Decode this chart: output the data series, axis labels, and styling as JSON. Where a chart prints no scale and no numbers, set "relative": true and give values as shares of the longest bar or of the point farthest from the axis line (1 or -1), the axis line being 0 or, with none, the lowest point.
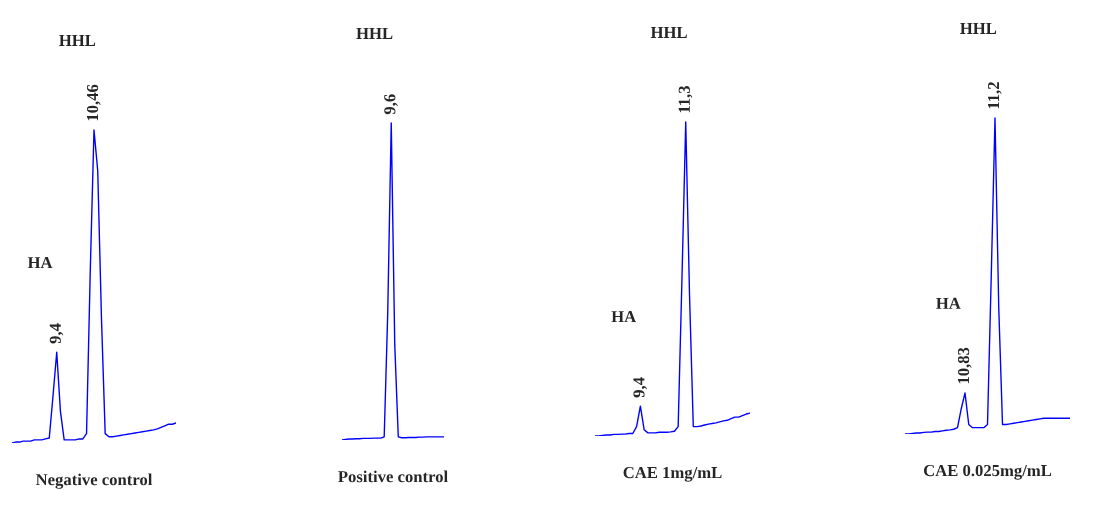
{
  "chart_data": [
    {
      "type": "line",
      "relative": true,
      "xlabel": "Negative control",
      "annotations": [
        "HA",
        "9,4",
        "HHL",
        "10,46"
      ],
      "categories": [
        null,
        null,
        null,
        null,
        null,
        null,
        null,
        null,
        null,
        null,
        null,
        null,
        null,
        null,
        null,
        null,
        null,
        null,
        null,
        null,
        null,
        null,
        null,
        null,
        null,
        null,
        null,
        null,
        null,
        null,
        null,
        null,
        null,
        null,
        null,
        null,
        null,
        null,
        null,
        null,
        null,
        null,
        null,
        null,
        null
      ],
      "series": [
        {
          "color": "#0000ff",
          "values": [
            0,
            0.003,
            0.003,
            0.006,
            0.006,
            0.006,
            0.01,
            0.01,
            0.01,
            0.013,
            0.016,
            0.15,
            0.29,
            0.1,
            0.01,
            0.01,
            0.01,
            0.01,
            0.013,
            0.013,
            0.03,
            0.55,
            1.0,
            0.87,
            0.4,
            0.03,
            0.02,
            0.02,
            0.022,
            0.024,
            0.026,
            0.028,
            0.03,
            0.032,
            0.034,
            0.036,
            0.038,
            0.04,
            0.042,
            0.045,
            0.05,
            0.055,
            0.06,
            0.06,
            0.064
          ]
        }
      ]
    },
    {
      "type": "line",
      "relative": true,
      "xlabel": "Positive control",
      "annotations": [
        "HHL",
        "9,6"
      ],
      "categories": [
        null,
        null,
        null,
        null,
        null,
        null,
        null,
        null,
        null,
        null,
        null,
        null,
        null,
        null,
        null,
        null,
        null,
        null,
        null,
        null,
        null,
        null,
        null,
        null,
        null,
        null,
        null,
        null,
        null,
        null
      ],
      "series": [
        {
          "color": "#0000ff",
          "values": [
            0,
            0.002,
            0.003,
            0.003,
            0.004,
            0.004,
            0.005,
            0.005,
            0.005,
            0.006,
            0.006,
            0.006,
            0.01,
            0.4,
            1.0,
            0.3,
            0.01,
            0.007,
            0.007,
            0.008,
            0.008,
            0.008,
            0.009,
            0.009,
            0.01,
            0.01,
            0.01,
            0.01,
            0.01,
            0.01
          ]
        }
      ]
    },
    {
      "type": "line",
      "relative": true,
      "xlabel": "CAE 1mg/mL",
      "annotations": [
        "HA",
        "9,4",
        "HHL",
        "11,3"
      ],
      "categories": [
        null,
        null,
        null,
        null,
        null,
        null,
        null,
        null,
        null,
        null,
        null,
        null,
        null,
        null,
        null,
        null,
        null,
        null,
        null,
        null,
        null,
        null,
        null,
        null,
        null,
        null,
        null,
        null,
        null,
        null,
        null,
        null,
        null,
        null,
        null,
        null,
        null,
        null,
        null,
        null,
        null,
        null
      ],
      "series": [
        {
          "color": "#0000ff",
          "values": [
            0,
            0,
            0.002,
            0.003,
            0.003,
            0.005,
            0.005,
            0.006,
            0.006,
            0.008,
            0.008,
            0.03,
            0.095,
            0.02,
            0.01,
            0.01,
            0.01,
            0.012,
            0.012,
            0.012,
            0.013,
            0.015,
            0.03,
            0.5,
            1.0,
            0.45,
            0.03,
            0.03,
            0.032,
            0.035,
            0.038,
            0.04,
            0.042,
            0.045,
            0.048,
            0.05,
            0.055,
            0.06,
            0.06,
            0.065,
            0.07,
            0.073
          ]
        }
      ]
    },
    {
      "type": "line",
      "relative": true,
      "xlabel": "CAE 0.025mg/mL",
      "annotations": [
        "HA",
        "10,83",
        "HHL",
        "11,2"
      ],
      "categories": [
        null,
        null,
        null,
        null,
        null,
        null,
        null,
        null,
        null,
        null,
        null,
        null,
        null,
        null,
        null,
        null,
        null,
        null,
        null,
        null,
        null,
        null,
        null,
        null,
        null,
        null,
        null,
        null,
        null,
        null,
        null,
        null,
        null,
        null,
        null,
        null,
        null,
        null,
        null,
        null,
        null,
        null,
        null,
        null,
        null
      ],
      "series": [
        {
          "color": "#0000ff",
          "values": [
            0,
            0,
            0.002,
            0.003,
            0.003,
            0.005,
            0.006,
            0.006,
            0.008,
            0.008,
            0.01,
            0.012,
            0.013,
            0.015,
            0.02,
            0.08,
            0.13,
            0.03,
            0.02,
            0.02,
            0.02,
            0.02,
            0.03,
            0.5,
            1.0,
            0.4,
            0.03,
            0.03,
            0.032,
            0.034,
            0.036,
            0.038,
            0.04,
            0.042,
            0.044,
            0.046,
            0.048,
            0.05,
            0.05,
            0.05,
            0.05,
            0.05,
            0.05,
            0.05,
            0.05
          ]
        }
      ]
    }
  ]
}
